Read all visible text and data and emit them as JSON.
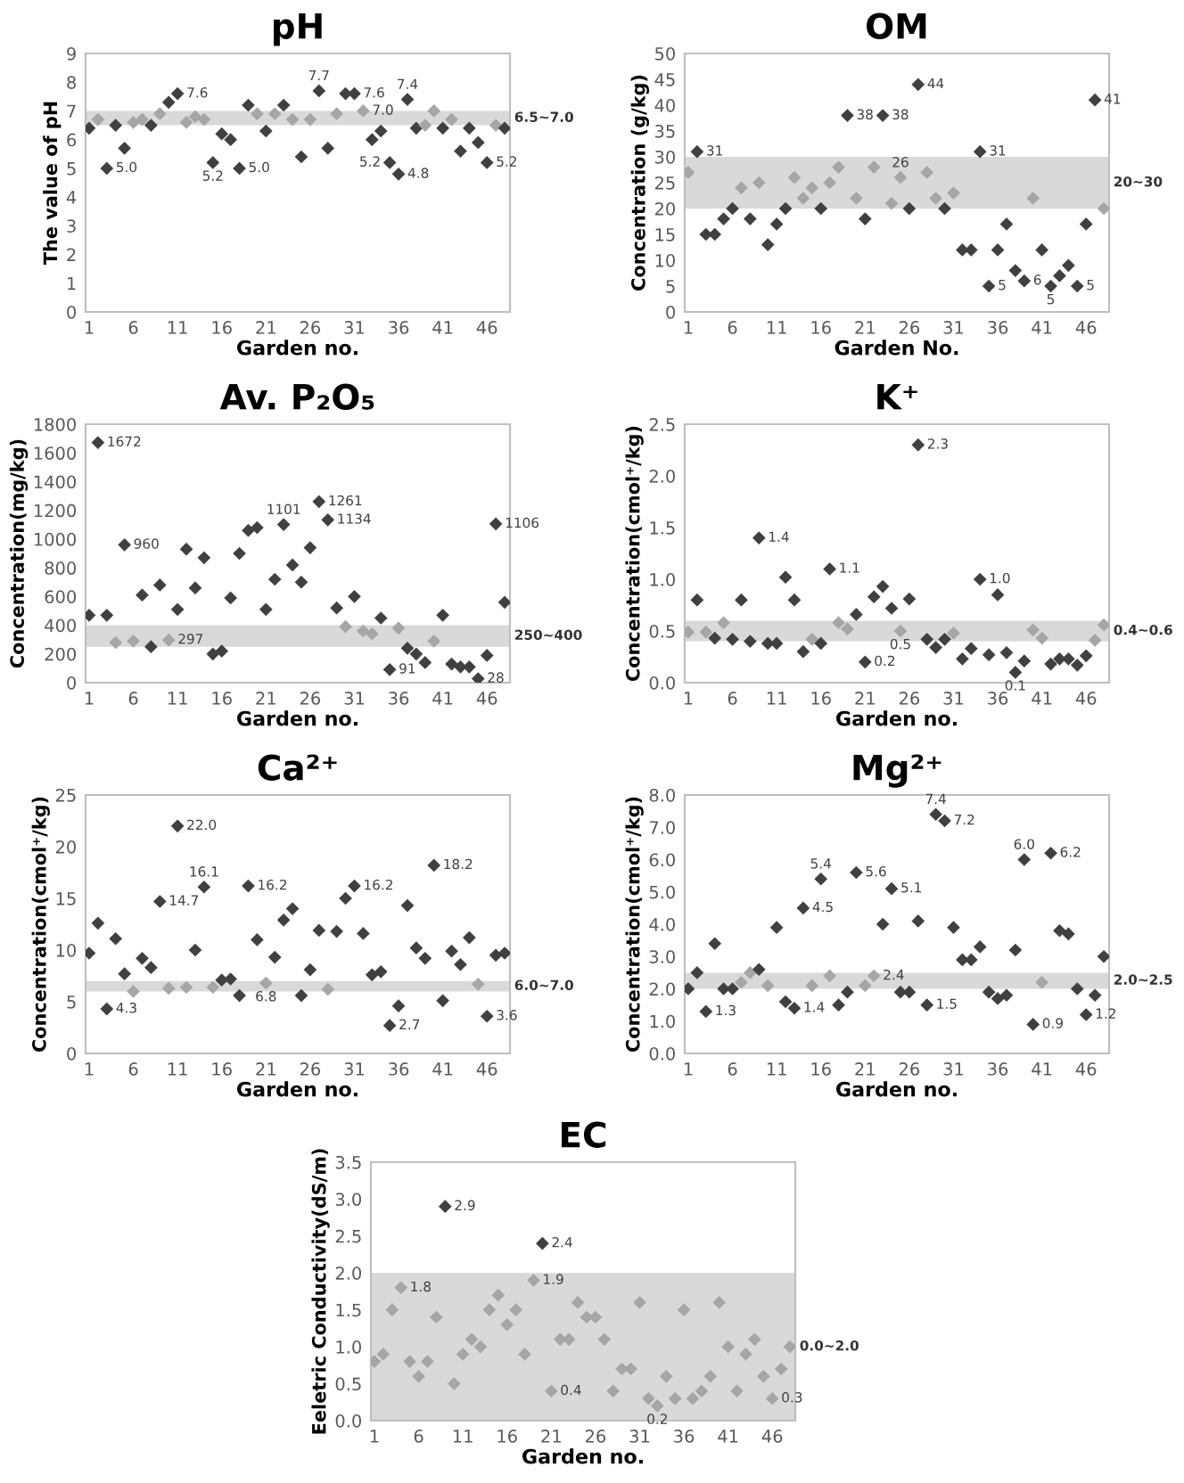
{
  "chart_data": [
    {
      "type": "scatter",
      "title": "pH",
      "xlabel": "Garden no.",
      "ylabel": "The value of pH",
      "marker": "diamond",
      "grid": false,
      "legend": false,
      "xlim": [
        0.6,
        48.6
      ],
      "xticks": [
        1,
        6,
        11,
        16,
        21,
        26,
        31,
        36,
        41,
        46
      ],
      "ylim": [
        0,
        9
      ],
      "yticks": [
        0,
        1,
        2,
        3,
        4,
        5,
        6,
        7,
        8,
        9
      ],
      "bands": [
        {
          "axis": "y",
          "from": 6.5,
          "to": 7.0,
          "label": "6.5~7.0",
          "color": "#d9d9d9"
        }
      ],
      "series": [
        {
          "x": [
            1,
            2,
            3,
            4,
            5,
            6,
            7,
            8,
            9,
            10,
            11,
            12,
            13,
            14,
            15,
            16,
            17,
            18,
            19,
            20,
            21,
            22,
            23,
            24,
            25,
            26,
            27,
            28,
            29,
            30,
            31,
            32,
            33,
            34,
            35,
            36,
            37,
            38,
            39,
            40,
            41,
            42,
            43,
            44,
            45,
            46,
            47,
            48
          ],
          "values": [
            6.4,
            6.7,
            5.0,
            6.5,
            5.7,
            6.6,
            6.7,
            6.5,
            6.9,
            7.3,
            7.6,
            6.6,
            6.8,
            6.7,
            5.2,
            6.2,
            6.0,
            5.0,
            7.2,
            6.9,
            6.3,
            6.9,
            7.2,
            6.7,
            5.4,
            6.7,
            7.7,
            5.7,
            6.9,
            7.6,
            7.6,
            7.0,
            6.0,
            6.3,
            5.2,
            4.8,
            7.4,
            6.4,
            6.5,
            7.0,
            6.4,
            6.7,
            5.6,
            6.4,
            5.9,
            5.2,
            6.5,
            6.4
          ],
          "colors": [
            "#404040",
            "#a6a6a6",
            "#404040",
            "#404040",
            "#404040",
            "#a6a6a6",
            "#a6a6a6",
            "#404040",
            "#a6a6a6",
            "#404040",
            "#404040",
            "#a6a6a6",
            "#a6a6a6",
            "#a6a6a6",
            "#404040",
            "#404040",
            "#404040",
            "#404040",
            "#404040",
            "#a6a6a6",
            "#404040",
            "#a6a6a6",
            "#404040",
            "#a6a6a6",
            "#404040",
            "#a6a6a6",
            "#404040",
            "#404040",
            "#a6a6a6",
            "#404040",
            "#404040",
            "#a6a6a6",
            "#404040",
            "#404040",
            "#404040",
            "#404040",
            "#404040",
            "#404040",
            "#a6a6a6",
            "#a6a6a6",
            "#404040",
            "#a6a6a6",
            "#404040",
            "#404040",
            "#404040",
            "#404040",
            "#a6a6a6",
            "#404040"
          ]
        }
      ],
      "annotations": [
        {
          "text": "5.0",
          "x": 3,
          "y": 5.0
        },
        {
          "text": "7.6",
          "x": 11,
          "y": 7.6
        },
        {
          "text": "5.2",
          "x": 15,
          "y": 5.2
        },
        {
          "text": "5.0",
          "x": 18,
          "y": 5.0
        },
        {
          "text": "7.7",
          "x": 27,
          "y": 7.7
        },
        {
          "text": "7.6",
          "x": 31,
          "y": 7.6
        },
        {
          "text": "7.0",
          "x": 32,
          "y": 7.0
        },
        {
          "text": "5.2",
          "x": 35,
          "y": 5.2
        },
        {
          "text": "4.8",
          "x": 36,
          "y": 4.8
        },
        {
          "text": "7.4",
          "x": 37,
          "y": 7.4
        },
        {
          "text": "5.2",
          "x": 46,
          "y": 5.2
        }
      ]
    },
    {
      "type": "scatter",
      "title": "OM",
      "xlabel": "Garden No.",
      "ylabel": "Concentration (g/kg)",
      "marker": "diamond",
      "grid": false,
      "legend": false,
      "xlim": [
        0.6,
        48.6
      ],
      "xticks": [
        1,
        6,
        11,
        16,
        21,
        26,
        31,
        36,
        41,
        46
      ],
      "ylim": [
        0,
        50
      ],
      "yticks": [
        0,
        5,
        10,
        15,
        20,
        25,
        30,
        35,
        40,
        45,
        50
      ],
      "bands": [
        {
          "axis": "y",
          "from": 20,
          "to": 30,
          "label": "20~30",
          "color": "#d9d9d9"
        }
      ],
      "series": [
        {
          "x": [
            1,
            2,
            3,
            4,
            5,
            6,
            7,
            8,
            9,
            10,
            11,
            12,
            13,
            14,
            15,
            16,
            17,
            18,
            19,
            20,
            21,
            22,
            23,
            24,
            25,
            26,
            27,
            28,
            29,
            30,
            31,
            32,
            33,
            34,
            35,
            36,
            37,
            38,
            39,
            40,
            41,
            42,
            43,
            44,
            45,
            46,
            47,
            48
          ],
          "values": [
            27,
            31,
            15,
            15,
            18,
            20,
            24,
            18,
            25,
            13,
            17,
            20,
            26,
            22,
            24,
            20,
            25,
            28,
            38,
            22,
            18,
            28,
            38,
            21,
            26,
            20,
            44,
            27,
            22,
            20,
            23,
            12,
            12,
            31,
            5,
            12,
            17,
            8,
            6,
            22,
            12,
            5,
            7,
            9,
            5,
            17,
            41,
            20
          ],
          "colors": [
            "#a6a6a6",
            "#404040",
            "#404040",
            "#404040",
            "#404040",
            "#404040",
            "#a6a6a6",
            "#404040",
            "#a6a6a6",
            "#404040",
            "#404040",
            "#404040",
            "#a6a6a6",
            "#a6a6a6",
            "#a6a6a6",
            "#404040",
            "#a6a6a6",
            "#a6a6a6",
            "#404040",
            "#a6a6a6",
            "#404040",
            "#a6a6a6",
            "#404040",
            "#a6a6a6",
            "#a6a6a6",
            "#404040",
            "#404040",
            "#a6a6a6",
            "#a6a6a6",
            "#404040",
            "#a6a6a6",
            "#404040",
            "#404040",
            "#404040",
            "#404040",
            "#404040",
            "#404040",
            "#404040",
            "#404040",
            "#a6a6a6",
            "#404040",
            "#404040",
            "#404040",
            "#404040",
            "#404040",
            "#404040",
            "#404040",
            "#a6a6a6"
          ]
        }
      ],
      "annotations": [
        {
          "text": "31",
          "x": 2,
          "y": 31
        },
        {
          "text": "38",
          "x": 19,
          "y": 38
        },
        {
          "text": "38",
          "x": 23,
          "y": 38
        },
        {
          "text": "26",
          "x": 25,
          "y": 26
        },
        {
          "text": "44",
          "x": 27,
          "y": 44
        },
        {
          "text": "31",
          "x": 34,
          "y": 31
        },
        {
          "text": "5",
          "x": 35,
          "y": 5
        },
        {
          "text": "6",
          "x": 39,
          "y": 6
        },
        {
          "text": "5",
          "x": 42,
          "y": 5
        },
        {
          "text": "5",
          "x": 45,
          "y": 5
        },
        {
          "text": "41",
          "x": 47,
          "y": 41
        }
      ]
    },
    {
      "type": "scatter",
      "title": "Av. P₂O₅",
      "xlabel": "Garden no.",
      "ylabel": "Concentration(mg/kg)",
      "marker": "diamond",
      "grid": false,
      "legend": false,
      "xlim": [
        0.6,
        48.6
      ],
      "xticks": [
        1,
        6,
        11,
        16,
        21,
        26,
        31,
        36,
        41,
        46
      ],
      "ylim": [
        0,
        1800
      ],
      "yticks": [
        0,
        200,
        400,
        600,
        800,
        1000,
        1200,
        1400,
        1600,
        1800
      ],
      "bands": [
        {
          "axis": "y",
          "from": 250,
          "to": 400,
          "label": "250~400",
          "color": "#d9d9d9"
        }
      ],
      "series": [
        {
          "x": [
            1,
            2,
            3,
            4,
            5,
            6,
            7,
            8,
            9,
            10,
            11,
            12,
            13,
            14,
            15,
            16,
            17,
            18,
            19,
            20,
            21,
            22,
            23,
            24,
            25,
            26,
            27,
            28,
            29,
            30,
            31,
            32,
            33,
            34,
            35,
            36,
            37,
            38,
            39,
            40,
            41,
            42,
            43,
            44,
            45,
            46,
            47,
            48
          ],
          "values": [
            470,
            1672,
            470,
            280,
            960,
            290,
            610,
            250,
            680,
            297,
            510,
            930,
            660,
            870,
            200,
            220,
            590,
            900,
            1060,
            1080,
            510,
            720,
            1101,
            820,
            700,
            940,
            1261,
            1134,
            520,
            390,
            600,
            360,
            340,
            450,
            91,
            380,
            240,
            200,
            140,
            290,
            470,
            130,
            110,
            110,
            28,
            190,
            1106,
            560
          ],
          "colors": [
            "#404040",
            "#404040",
            "#404040",
            "#a6a6a6",
            "#404040",
            "#a6a6a6",
            "#404040",
            "#404040",
            "#404040",
            "#a6a6a6",
            "#404040",
            "#404040",
            "#404040",
            "#404040",
            "#404040",
            "#404040",
            "#404040",
            "#404040",
            "#404040",
            "#404040",
            "#404040",
            "#404040",
            "#404040",
            "#404040",
            "#404040",
            "#404040",
            "#404040",
            "#404040",
            "#404040",
            "#a6a6a6",
            "#404040",
            "#a6a6a6",
            "#a6a6a6",
            "#404040",
            "#404040",
            "#a6a6a6",
            "#404040",
            "#404040",
            "#404040",
            "#a6a6a6",
            "#404040",
            "#404040",
            "#404040",
            "#404040",
            "#404040",
            "#404040",
            "#404040",
            "#404040"
          ]
        }
      ],
      "annotations": [
        {
          "text": "1672",
          "x": 2,
          "y": 1672
        },
        {
          "text": "960",
          "x": 5,
          "y": 960
        },
        {
          "text": "297",
          "x": 10,
          "y": 297
        },
        {
          "text": "1101",
          "x": 23,
          "y": 1101
        },
        {
          "text": "1261",
          "x": 27,
          "y": 1261
        },
        {
          "text": "1134",
          "x": 28,
          "y": 1134
        },
        {
          "text": "91",
          "x": 35,
          "y": 91
        },
        {
          "text": "28",
          "x": 45,
          "y": 28
        },
        {
          "text": "1106",
          "x": 47,
          "y": 1106
        }
      ]
    },
    {
      "type": "scatter",
      "title": "K⁺",
      "xlabel": "Garden no.",
      "ylabel": "Concentration(cmol⁺/kg)",
      "marker": "diamond",
      "grid": false,
      "legend": false,
      "xlim": [
        0.6,
        48.6
      ],
      "xticks": [
        1,
        6,
        11,
        16,
        21,
        26,
        31,
        36,
        41,
        46
      ],
      "ylim": [
        0,
        2.5
      ],
      "yticks": [
        {
          "value": 0,
          "label": "0.0"
        },
        0.5,
        {
          "value": 1,
          "label": "1.0"
        },
        1.5,
        {
          "value": 2,
          "label": "2.0"
        },
        2.5
      ],
      "bands": [
        {
          "axis": "y",
          "from": 0.4,
          "to": 0.6,
          "label": "0.4~0.6",
          "color": "#d9d9d9"
        }
      ],
      "series": [
        {
          "x": [
            1,
            2,
            3,
            4,
            5,
            6,
            7,
            8,
            9,
            10,
            11,
            12,
            13,
            14,
            15,
            16,
            17,
            18,
            19,
            20,
            21,
            22,
            23,
            24,
            25,
            26,
            27,
            28,
            29,
            30,
            31,
            32,
            33,
            34,
            35,
            36,
            37,
            38,
            39,
            40,
            41,
            42,
            43,
            44,
            45,
            46,
            47,
            48
          ],
          "values": [
            0.49,
            0.8,
            0.49,
            0.43,
            0.58,
            0.42,
            0.8,
            0.4,
            1.4,
            0.38,
            0.38,
            1.02,
            0.8,
            0.3,
            0.42,
            0.38,
            1.1,
            0.58,
            0.52,
            0.66,
            0.2,
            0.83,
            0.93,
            0.72,
            0.5,
            0.81,
            2.3,
            0.42,
            0.34,
            0.42,
            0.48,
            0.23,
            0.33,
            1.0,
            0.27,
            0.85,
            0.29,
            0.1,
            0.21,
            0.51,
            0.43,
            0.18,
            0.23,
            0.23,
            0.17,
            0.26,
            0.41,
            0.56
          ],
          "colors": [
            "#a6a6a6",
            "#404040",
            "#a6a6a6",
            "#404040",
            "#a6a6a6",
            "#404040",
            "#404040",
            "#404040",
            "#404040",
            "#404040",
            "#404040",
            "#404040",
            "#404040",
            "#404040",
            "#a6a6a6",
            "#404040",
            "#404040",
            "#a6a6a6",
            "#a6a6a6",
            "#404040",
            "#404040",
            "#404040",
            "#404040",
            "#404040",
            "#a6a6a6",
            "#404040",
            "#404040",
            "#404040",
            "#404040",
            "#404040",
            "#a6a6a6",
            "#404040",
            "#404040",
            "#404040",
            "#404040",
            "#404040",
            "#404040",
            "#404040",
            "#404040",
            "#a6a6a6",
            "#a6a6a6",
            "#404040",
            "#404040",
            "#404040",
            "#404040",
            "#404040",
            "#a6a6a6",
            "#a6a6a6"
          ]
        }
      ],
      "annotations": [
        {
          "text": "1.4",
          "x": 9,
          "y": 1.4
        },
        {
          "text": "1.1",
          "x": 17,
          "y": 1.1
        },
        {
          "text": "0.2",
          "x": 21,
          "y": 0.2
        },
        {
          "text": "0.5",
          "x": 25,
          "y": 0.5
        },
        {
          "text": "2.3",
          "x": 27,
          "y": 2.3
        },
        {
          "text": "1.0",
          "x": 34,
          "y": 1.0
        },
        {
          "text": "0.1",
          "x": 38,
          "y": 0.1
        }
      ]
    },
    {
      "type": "scatter",
      "title": "Ca²⁺",
      "xlabel": "Garden no.",
      "ylabel": "Concentration(cmol⁺/kg)",
      "marker": "diamond",
      "grid": false,
      "legend": false,
      "xlim": [
        0.6,
        48.6
      ],
      "xticks": [
        1,
        6,
        11,
        16,
        21,
        26,
        31,
        36,
        41,
        46
      ],
      "ylim": [
        0,
        25
      ],
      "yticks": [
        0,
        5,
        10,
        15,
        20,
        25
      ],
      "bands": [
        {
          "axis": "y",
          "from": 6.0,
          "to": 7.0,
          "label": "6.0~7.0",
          "color": "#d9d9d9"
        }
      ],
      "series": [
        {
          "x": [
            1,
            2,
            3,
            4,
            5,
            6,
            7,
            8,
            9,
            10,
            11,
            12,
            13,
            14,
            15,
            16,
            17,
            18,
            19,
            20,
            21,
            22,
            23,
            24,
            25,
            26,
            27,
            28,
            29,
            30,
            31,
            32,
            33,
            34,
            35,
            36,
            37,
            38,
            39,
            40,
            41,
            42,
            43,
            44,
            45,
            46,
            47,
            48
          ],
          "values": [
            9.7,
            12.6,
            4.3,
            11.1,
            7.7,
            6.0,
            9.2,
            8.3,
            14.7,
            6.3,
            22.0,
            6.4,
            10.0,
            16.1,
            6.4,
            7.1,
            7.2,
            5.6,
            16.2,
            11.0,
            6.8,
            9.3,
            12.9,
            14.0,
            5.6,
            8.1,
            11.9,
            6.2,
            11.8,
            15.0,
            16.2,
            11.6,
            7.6,
            7.9,
            2.7,
            4.6,
            14.3,
            10.2,
            9.2,
            18.2,
            5.1,
            9.9,
            8.6,
            11.2,
            6.7,
            3.6,
            9.5,
            9.7
          ],
          "colors": [
            "#404040",
            "#404040",
            "#404040",
            "#404040",
            "#404040",
            "#a6a6a6",
            "#404040",
            "#404040",
            "#404040",
            "#a6a6a6",
            "#404040",
            "#a6a6a6",
            "#404040",
            "#404040",
            "#a6a6a6",
            "#404040",
            "#404040",
            "#404040",
            "#404040",
            "#404040",
            "#a6a6a6",
            "#404040",
            "#404040",
            "#404040",
            "#404040",
            "#404040",
            "#404040",
            "#a6a6a6",
            "#404040",
            "#404040",
            "#404040",
            "#404040",
            "#404040",
            "#404040",
            "#404040",
            "#404040",
            "#404040",
            "#404040",
            "#404040",
            "#404040",
            "#404040",
            "#404040",
            "#404040",
            "#404040",
            "#a6a6a6",
            "#404040",
            "#404040",
            "#404040"
          ]
        }
      ],
      "annotations": [
        {
          "text": "4.3",
          "x": 3,
          "y": 4.3
        },
        {
          "text": "14.7",
          "x": 9,
          "y": 14.7
        },
        {
          "text": "22.0",
          "x": 11,
          "y": 22.0
        },
        {
          "text": "16.1",
          "x": 14,
          "y": 16.1
        },
        {
          "text": "16.2",
          "x": 19,
          "y": 16.2
        },
        {
          "text": "6.8",
          "x": 21,
          "y": 6.8
        },
        {
          "text": "16.2",
          "x": 31,
          "y": 16.2
        },
        {
          "text": "2.7",
          "x": 35,
          "y": 2.7
        },
        {
          "text": "18.2",
          "x": 40,
          "y": 18.2
        },
        {
          "text": "3.6",
          "x": 46,
          "y": 3.6
        }
      ]
    },
    {
      "type": "scatter",
      "title": "Mg²⁺",
      "xlabel": "Garden no.",
      "ylabel": "Concentration(cmol⁺/kg)",
      "marker": "diamond",
      "grid": false,
      "legend": false,
      "xlim": [
        0.6,
        48.6
      ],
      "xticks": [
        1,
        6,
        11,
        16,
        21,
        26,
        31,
        36,
        41,
        46
      ],
      "ylim": [
        0,
        8
      ],
      "yticks": [
        {
          "value": 0,
          "label": "0.0"
        },
        {
          "value": 1,
          "label": "1.0"
        },
        {
          "value": 2,
          "label": "2.0"
        },
        {
          "value": 3,
          "label": "3.0"
        },
        {
          "value": 4,
          "label": "4.0"
        },
        {
          "value": 5,
          "label": "5.0"
        },
        {
          "value": 6,
          "label": "6.0"
        },
        {
          "value": 7,
          "label": "7.0"
        },
        {
          "value": 8,
          "label": "8.0"
        }
      ],
      "bands": [
        {
          "axis": "y",
          "from": 2.0,
          "to": 2.5,
          "label": "2.0~2.5",
          "color": "#d9d9d9"
        }
      ],
      "series": [
        {
          "x": [
            1,
            2,
            3,
            4,
            5,
            6,
            7,
            8,
            9,
            10,
            11,
            12,
            13,
            14,
            15,
            16,
            17,
            18,
            19,
            20,
            21,
            22,
            23,
            24,
            25,
            26,
            27,
            28,
            29,
            30,
            31,
            32,
            33,
            34,
            35,
            36,
            37,
            38,
            39,
            40,
            41,
            42,
            43,
            44,
            45,
            46,
            47,
            48
          ],
          "values": [
            2.0,
            2.5,
            1.3,
            3.4,
            2.0,
            2.0,
            2.2,
            2.5,
            2.6,
            2.1,
            3.9,
            1.6,
            1.4,
            4.5,
            2.1,
            5.4,
            2.4,
            1.5,
            1.9,
            5.6,
            2.1,
            2.4,
            4.0,
            5.1,
            1.9,
            1.9,
            4.1,
            1.5,
            7.4,
            7.2,
            3.9,
            2.9,
            2.9,
            3.3,
            1.9,
            1.7,
            1.8,
            3.2,
            6.0,
            0.9,
            2.2,
            6.2,
            3.8,
            3.7,
            2.0,
            1.2,
            1.8,
            3.0
          ],
          "colors": [
            "#404040",
            "#404040",
            "#404040",
            "#404040",
            "#404040",
            "#404040",
            "#a6a6a6",
            "#a6a6a6",
            "#404040",
            "#a6a6a6",
            "#404040",
            "#404040",
            "#404040",
            "#404040",
            "#a6a6a6",
            "#404040",
            "#a6a6a6",
            "#404040",
            "#404040",
            "#404040",
            "#a6a6a6",
            "#a6a6a6",
            "#404040",
            "#404040",
            "#404040",
            "#404040",
            "#404040",
            "#404040",
            "#404040",
            "#404040",
            "#404040",
            "#404040",
            "#404040",
            "#404040",
            "#404040",
            "#404040",
            "#404040",
            "#404040",
            "#404040",
            "#404040",
            "#a6a6a6",
            "#404040",
            "#404040",
            "#404040",
            "#404040",
            "#404040",
            "#404040",
            "#404040"
          ]
        }
      ],
      "annotations": [
        {
          "text": "1.3",
          "x": 3,
          "y": 1.3
        },
        {
          "text": "1.4",
          "x": 13,
          "y": 1.4
        },
        {
          "text": "4.5",
          "x": 14,
          "y": 4.5
        },
        {
          "text": "5.4",
          "x": 16,
          "y": 5.4
        },
        {
          "text": "5.6",
          "x": 20,
          "y": 5.6
        },
        {
          "text": "2.4",
          "x": 22,
          "y": 2.4
        },
        {
          "text": "5.1",
          "x": 24,
          "y": 5.1
        },
        {
          "text": "1.5",
          "x": 28,
          "y": 1.5
        },
        {
          "text": "7.4",
          "x": 29,
          "y": 7.4
        },
        {
          "text": "7.2",
          "x": 30,
          "y": 7.2
        },
        {
          "text": "6.0",
          "x": 39,
          "y": 6.0
        },
        {
          "text": "0.9",
          "x": 40,
          "y": 0.9
        },
        {
          "text": "6.2",
          "x": 42,
          "y": 6.2
        },
        {
          "text": "1.2",
          "x": 46,
          "y": 1.2
        }
      ]
    },
    {
      "type": "scatter",
      "title": "EC",
      "xlabel": "Garden no.",
      "ylabel": "Eeletric Conductivity(dS/m)",
      "marker": "diamond",
      "grid": false,
      "legend": false,
      "xlim": [
        0.6,
        48.6
      ],
      "xticks": [
        1,
        6,
        11,
        16,
        21,
        26,
        31,
        36,
        41,
        46
      ],
      "ylim": [
        0,
        3.5
      ],
      "yticks": [
        {
          "value": 0,
          "label": "0.0"
        },
        0.5,
        {
          "value": 1,
          "label": "1.0"
        },
        1.5,
        {
          "value": 2,
          "label": "2.0"
        },
        2.5,
        {
          "value": 3,
          "label": "3.0"
        },
        3.5
      ],
      "bands": [
        {
          "axis": "y",
          "from": 0.0,
          "to": 2.0,
          "label": "0.0~2.0",
          "color": "#d9d9d9"
        }
      ],
      "series": [
        {
          "x": [
            1,
            2,
            3,
            4,
            5,
            6,
            7,
            8,
            9,
            10,
            11,
            12,
            13,
            14,
            15,
            16,
            17,
            18,
            19,
            20,
            21,
            22,
            23,
            24,
            25,
            26,
            27,
            28,
            29,
            30,
            31,
            32,
            33,
            34,
            35,
            36,
            37,
            38,
            39,
            40,
            41,
            42,
            43,
            44,
            45,
            46,
            47,
            48
          ],
          "values": [
            0.8,
            0.9,
            1.5,
            1.8,
            0.8,
            0.6,
            0.8,
            1.4,
            2.9,
            0.5,
            0.9,
            1.1,
            1.0,
            1.5,
            1.7,
            1.3,
            1.5,
            0.9,
            1.9,
            2.4,
            0.4,
            1.1,
            1.1,
            1.6,
            1.4,
            1.4,
            1.1,
            0.4,
            0.7,
            0.7,
            1.6,
            0.3,
            0.2,
            0.6,
            0.3,
            1.5,
            0.3,
            0.4,
            0.6,
            1.6,
            1.0,
            0.4,
            0.9,
            1.1,
            0.6,
            0.3,
            0.7,
            1.0
          ],
          "colors": [
            "#a6a6a6",
            "#a6a6a6",
            "#a6a6a6",
            "#a6a6a6",
            "#a6a6a6",
            "#a6a6a6",
            "#a6a6a6",
            "#a6a6a6",
            "#404040",
            "#a6a6a6",
            "#a6a6a6",
            "#a6a6a6",
            "#a6a6a6",
            "#a6a6a6",
            "#a6a6a6",
            "#a6a6a6",
            "#a6a6a6",
            "#a6a6a6",
            "#a6a6a6",
            "#404040",
            "#a6a6a6",
            "#a6a6a6",
            "#a6a6a6",
            "#a6a6a6",
            "#a6a6a6",
            "#a6a6a6",
            "#a6a6a6",
            "#a6a6a6",
            "#a6a6a6",
            "#a6a6a6",
            "#a6a6a6",
            "#a6a6a6",
            "#a6a6a6",
            "#a6a6a6",
            "#a6a6a6",
            "#a6a6a6",
            "#a6a6a6",
            "#a6a6a6",
            "#a6a6a6",
            "#a6a6a6",
            "#a6a6a6",
            "#a6a6a6",
            "#a6a6a6",
            "#a6a6a6",
            "#a6a6a6",
            "#a6a6a6",
            "#a6a6a6",
            "#a6a6a6"
          ]
        }
      ],
      "annotations": [
        {
          "text": "1.8",
          "x": 4,
          "y": 1.8
        },
        {
          "text": "2.9",
          "x": 9,
          "y": 2.9
        },
        {
          "text": "1.9",
          "x": 19,
          "y": 1.9
        },
        {
          "text": "2.4",
          "x": 20,
          "y": 2.4
        },
        {
          "text": "0.4",
          "x": 21,
          "y": 0.4
        },
        {
          "text": "0.2",
          "x": 33,
          "y": 0.2
        },
        {
          "text": "0.3",
          "x": 46,
          "y": 0.3
        }
      ]
    }
  ]
}
